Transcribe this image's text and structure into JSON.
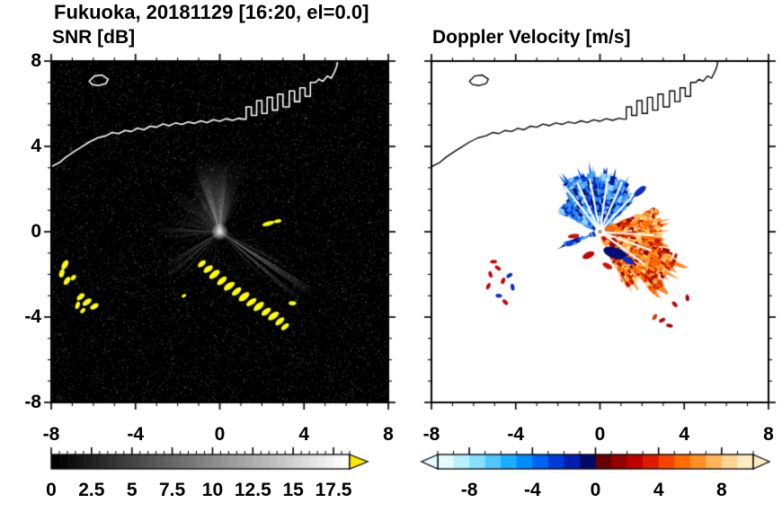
{
  "title": "Fukuoka, 20181129 [16:20, el=0.0]",
  "panels": {
    "snr": {
      "title": "SNR [dB]",
      "yticks": [
        "8",
        "4",
        "0",
        "-4",
        "-8"
      ],
      "xticks": [
        "-8",
        "-4",
        "0",
        "4",
        "8"
      ],
      "colorbar_ticks": [
        "0",
        "2.5",
        "5",
        "7.5",
        "10",
        "12.5",
        "15",
        "17.5"
      ]
    },
    "doppler": {
      "title": "Doppler Velocity [m/s]",
      "xticks": [
        "-8",
        "-4",
        "0",
        "4",
        "8"
      ],
      "colorbar_ticks": [
        "-8",
        "-4",
        "0",
        "4",
        "8"
      ]
    }
  },
  "chart_data": [
    {
      "type": "heatmap",
      "name": "snr",
      "title": "SNR [dB]",
      "units": "dB",
      "xlim": [
        -8,
        8
      ],
      "ylim": [
        -8,
        8
      ],
      "xticks": [
        -8,
        -4,
        0,
        4,
        8
      ],
      "yticks": [
        8,
        4,
        0,
        -4,
        -8
      ],
      "minor_tick_step": 1,
      "background": "#000000",
      "colorbar": {
        "range": [
          0,
          18.5
        ],
        "ticks": [
          0,
          2.5,
          5,
          7.5,
          10,
          12.5,
          15,
          17.5
        ],
        "minor_step": 0.5,
        "palette": "grayscale-black-to-white",
        "over_arrow_color": "#ffe800"
      },
      "noise": {
        "count": 15000,
        "max_alpha": 0.28
      },
      "beams": [
        [
          97,
          15,
          3.4,
          0.3
        ],
        [
          112,
          11,
          2.8,
          0.26
        ],
        [
          126,
          8,
          2.3,
          0.22
        ],
        [
          140,
          7,
          2.9,
          0.2
        ],
        [
          154,
          6,
          2.1,
          0.18
        ],
        [
          167,
          5,
          2.5,
          0.17
        ],
        [
          83,
          8,
          2.5,
          0.26
        ],
        [
          70,
          7,
          2.0,
          0.21
        ],
        [
          59,
          5,
          1.6,
          0.16
        ],
        [
          90,
          22,
          3.8,
          0.14
        ],
        [
          -33,
          2.5,
          5.5,
          0.48
        ],
        [
          -40,
          2,
          5.1,
          0.42
        ],
        [
          -27,
          1.5,
          3.7,
          0.3
        ],
        [
          -47,
          1.5,
          3.1,
          0.24
        ],
        [
          -21,
          1,
          2.6,
          0.18
        ],
        [
          178,
          3,
          3.1,
          0.3
        ],
        [
          186,
          2.5,
          2.7,
          0.24
        ],
        [
          195,
          2,
          2.2,
          0.18
        ],
        [
          213,
          3,
          3.2,
          0.3
        ],
        [
          221,
          2.5,
          3.6,
          0.27
        ],
        [
          229,
          2,
          3.1,
          0.22
        ],
        [
          237,
          2,
          2.5,
          0.18
        ],
        [
          247,
          1.5,
          2.1,
          0.15
        ],
        [
          258,
          1.5,
          2.3,
          0.17
        ],
        [
          267,
          1,
          1.7,
          0.12
        ],
        [
          28,
          1.2,
          2.1,
          0.12
        ],
        [
          12,
          1,
          1.7,
          0.1
        ],
        [
          -8,
          1,
          2.3,
          0.12
        ],
        [
          -15,
          1.2,
          2.9,
          0.15
        ],
        [
          -57,
          1,
          2.5,
          0.14
        ],
        [
          -66,
          1,
          1.9,
          0.1
        ],
        [
          -76,
          1,
          1.5,
          0.1
        ],
        [
          40,
          1,
          1.5,
          0.08
        ]
      ],
      "clutter_color": "#ffff00",
      "clutter": [
        [
          -0.85,
          -1.5,
          0.22,
          0.12,
          40
        ],
        [
          -0.55,
          -1.75,
          0.25,
          0.13,
          35
        ],
        [
          -0.25,
          -2.0,
          0.3,
          0.14,
          38
        ],
        [
          0.1,
          -2.3,
          0.28,
          0.13,
          40
        ],
        [
          0.45,
          -2.55,
          0.3,
          0.14,
          35
        ],
        [
          0.8,
          -2.8,
          0.27,
          0.13,
          40
        ],
        [
          1.15,
          -3.05,
          0.3,
          0.15,
          38
        ],
        [
          1.5,
          -3.3,
          0.28,
          0.13,
          35
        ],
        [
          1.85,
          -3.5,
          0.3,
          0.14,
          40
        ],
        [
          2.2,
          -3.75,
          0.26,
          0.13,
          38
        ],
        [
          2.55,
          -3.95,
          0.3,
          0.14,
          35
        ],
        [
          2.85,
          -4.2,
          0.26,
          0.12,
          40
        ],
        [
          3.1,
          -4.45,
          0.22,
          0.11,
          40
        ],
        [
          3.45,
          -3.35,
          0.18,
          0.1,
          0
        ],
        [
          2.3,
          0.38,
          0.3,
          0.1,
          15
        ],
        [
          2.75,
          0.5,
          0.18,
          0.08,
          10
        ],
        [
          -7.35,
          -1.55,
          0.25,
          0.13,
          60
        ],
        [
          -7.5,
          -1.95,
          0.2,
          0.12,
          75
        ],
        [
          -7.25,
          -2.3,
          0.22,
          0.12,
          55
        ],
        [
          -6.95,
          -2.15,
          0.15,
          0.1,
          45
        ],
        [
          -6.6,
          -3.05,
          0.22,
          0.12,
          40
        ],
        [
          -6.3,
          -3.3,
          0.25,
          0.12,
          35
        ],
        [
          -5.95,
          -3.5,
          0.22,
          0.12,
          30
        ],
        [
          -6.75,
          -3.45,
          0.18,
          0.1,
          70
        ],
        [
          -6.5,
          -3.7,
          0.15,
          0.09,
          50
        ],
        [
          -1.7,
          -3.0,
          0.12,
          0.07,
          30
        ]
      ],
      "coastline_color": "#ffffff",
      "coastline": [
        [
          -8,
          3.05
        ],
        [
          -7.6,
          3.25
        ],
        [
          -7.3,
          3.5
        ],
        [
          -7,
          3.7
        ],
        [
          -6.6,
          3.95
        ],
        [
          -6.2,
          4.2
        ],
        [
          -5.8,
          4.4
        ],
        [
          -5.4,
          4.5
        ],
        [
          -5.1,
          4.65
        ],
        [
          -4.8,
          4.6
        ],
        [
          -4.5,
          4.75
        ],
        [
          -4.2,
          4.7
        ],
        [
          -3.9,
          4.85
        ],
        [
          -3.6,
          4.78
        ],
        [
          -3.3,
          4.95
        ],
        [
          -3,
          4.9
        ],
        [
          -2.7,
          5.05
        ],
        [
          -2.4,
          4.97
        ],
        [
          -2.1,
          5.1
        ],
        [
          -1.8,
          5.03
        ],
        [
          -1.5,
          5.15
        ],
        [
          -1.2,
          5.08
        ],
        [
          -0.9,
          5.2
        ],
        [
          -0.6,
          5.12
        ],
        [
          -0.3,
          5.25
        ],
        [
          0,
          5.18
        ],
        [
          0.3,
          5.3
        ],
        [
          0.6,
          5.22
        ],
        [
          0.9,
          5.32
        ],
        [
          1.1,
          5.28
        ],
        [
          1.25,
          5.28
        ],
        [
          1.25,
          5.85
        ],
        [
          1.5,
          5.85
        ],
        [
          1.5,
          5.45
        ],
        [
          1.75,
          5.45
        ],
        [
          1.75,
          6.15
        ],
        [
          2,
          6.15
        ],
        [
          2,
          5.55
        ],
        [
          2.25,
          5.55
        ],
        [
          2.25,
          6.3
        ],
        [
          2.5,
          6.3
        ],
        [
          2.5,
          5.7
        ],
        [
          2.75,
          5.7
        ],
        [
          2.75,
          6.45
        ],
        [
          3,
          6.45
        ],
        [
          3,
          5.85
        ],
        [
          3.3,
          5.85
        ],
        [
          3.3,
          6.6
        ],
        [
          3.55,
          6.6
        ],
        [
          3.55,
          6.1
        ],
        [
          3.8,
          6.1
        ],
        [
          3.8,
          6.75
        ],
        [
          4.05,
          6.75
        ],
        [
          4.05,
          6.35
        ],
        [
          4.3,
          6.35
        ],
        [
          4.3,
          7
        ],
        [
          4.55,
          7
        ],
        [
          4.7,
          7.15
        ],
        [
          4.9,
          7.05
        ],
        [
          5.1,
          7.3
        ],
        [
          5.3,
          7.2
        ],
        [
          5.45,
          7.5
        ],
        [
          5.55,
          7.75
        ],
        [
          5.6,
          8.05
        ]
      ],
      "island": [
        [
          -6.2,
          7.05
        ],
        [
          -5.95,
          7.3
        ],
        [
          -5.6,
          7.35
        ],
        [
          -5.3,
          7.15
        ],
        [
          -5.4,
          6.95
        ],
        [
          -5.75,
          6.85
        ],
        [
          -6.05,
          6.9
        ]
      ]
    },
    {
      "type": "heatmap",
      "name": "doppler",
      "title": "Doppler Velocity [m/s]",
      "units": "m/s",
      "xlim": [
        -8,
        8
      ],
      "ylim": [
        -8,
        8
      ],
      "xticks": [
        -8,
        -4,
        0,
        4,
        8
      ],
      "yticks": [
        8,
        4,
        0,
        -4,
        -8
      ],
      "minor_tick_step": 1,
      "background": "#ffffff",
      "colorbar": {
        "range": [
          -10,
          10
        ],
        "ticks": [
          -8,
          -4,
          0,
          4,
          8
        ],
        "minor_step": 1,
        "palette_colors": [
          "#e3fbff",
          "#b8f0ff",
          "#86e0ff",
          "#50c8ff",
          "#1dacff",
          "#008cff",
          "#0063f2",
          "#003bd6",
          "#001fae",
          "#000a66",
          "#670000",
          "#940000",
          "#bd0000",
          "#de1a00",
          "#f34400",
          "#ff6c00",
          "#ff9026",
          "#ffb458",
          "#ffd492",
          "#ffedc2"
        ],
        "under_arrow_color": "#e3fbff",
        "over_arrow_color": "#ffedc2"
      },
      "palettes": {
        "cool": [
          "#8fd4ff",
          "#4fa8ff",
          "#1f7cf0",
          "#0a3cd8",
          "#001b9e",
          "#00105e",
          "#2b8cff"
        ],
        "warm": [
          "#ffd98c",
          "#ffb954",
          "#ff9426",
          "#ff6a00",
          "#e63900",
          "#c21200",
          "#970000"
        ]
      },
      "sectors": [
        {
          "a0": 129,
          "a1": 153,
          "r": 2.1,
          "color": "#3fa8ff",
          "pal": "cool",
          "n": 160
        },
        {
          "a0": 96,
          "a1": 130,
          "r": 2.9,
          "color": "#1063ee",
          "pal": "cool",
          "n": 300
        },
        {
          "a0": 58,
          "a1": 97,
          "r": 2.7,
          "color": "#0626c8",
          "pal": "cool",
          "n": 300
        },
        {
          "a0": 44,
          "a1": 59,
          "r": 2.3,
          "color": "#0a18a8",
          "pal": "cool",
          "n": 120
        },
        {
          "a0": -17,
          "a1": 23,
          "r": 3.0,
          "color": "#ff7c14",
          "pal": "warm",
          "n": 300
        },
        {
          "a0": -49,
          "a1": -16,
          "r": 3.9,
          "color": "#ff8a26",
          "pal": "warm",
          "n": 330
        },
        {
          "a0": -65,
          "a1": -47,
          "r": 3.0,
          "color": "#ff9a3a",
          "pal": "warm",
          "n": 160
        },
        {
          "a0": 198,
          "a1": 203,
          "r": 1.9,
          "color": "#000d72",
          "pal": "cool",
          "n": 20
        }
      ],
      "gaps": [
        101,
        115,
        128,
        66,
        82,
        -4,
        -20,
        -36,
        48
      ],
      "blobs": [
        {
          "x": 0.72,
          "y": -1.0,
          "rx": 0.58,
          "ry": 0.26,
          "rot": -18,
          "color": "#000d77"
        },
        {
          "x": 1.35,
          "y": -1.35,
          "rx": 0.3,
          "ry": 0.15,
          "rot": -25,
          "color": "#0a2cc0"
        },
        {
          "x": -0.55,
          "y": -1.1,
          "rx": 0.3,
          "ry": 0.15,
          "rot": 25,
          "color": "#c40000"
        },
        {
          "x": -1.25,
          "y": -0.2,
          "rx": 0.28,
          "ry": 0.1,
          "rot": 8,
          "color": "#c81400"
        },
        {
          "x": 0.35,
          "y": -1.6,
          "rx": 0.25,
          "ry": 0.12,
          "rot": -30,
          "color": "#d01000"
        },
        {
          "x": 1.9,
          "y": 1.9,
          "rx": 0.35,
          "ry": 0.15,
          "rot": 40,
          "color": "#0a2cc0"
        }
      ],
      "specks": [
        [
          -5.05,
          -1.4,
          "#c80000"
        ],
        [
          -4.85,
          -1.7,
          "#d40000"
        ],
        [
          -5.2,
          -2.0,
          "#c80000"
        ],
        [
          -4.6,
          -2.3,
          "#cc0000"
        ],
        [
          -4.3,
          -2.05,
          "#0a2cc0"
        ],
        [
          -4.8,
          -3.0,
          "#0a2cc0"
        ],
        [
          -4.5,
          -3.3,
          "#c80000"
        ],
        [
          -4.15,
          -2.6,
          "#0a2cc0"
        ],
        [
          -5.3,
          -2.55,
          "#c80000"
        ],
        [
          2.95,
          -4.15,
          "#c80000"
        ],
        [
          3.3,
          -4.4,
          "#b00000"
        ],
        [
          3.55,
          -3.4,
          "#c80000"
        ],
        [
          4.15,
          -3.1,
          "#b00000"
        ],
        [
          2.6,
          -4.0,
          "#d43a00"
        ]
      ],
      "coastline_color": "#000000"
    }
  ]
}
